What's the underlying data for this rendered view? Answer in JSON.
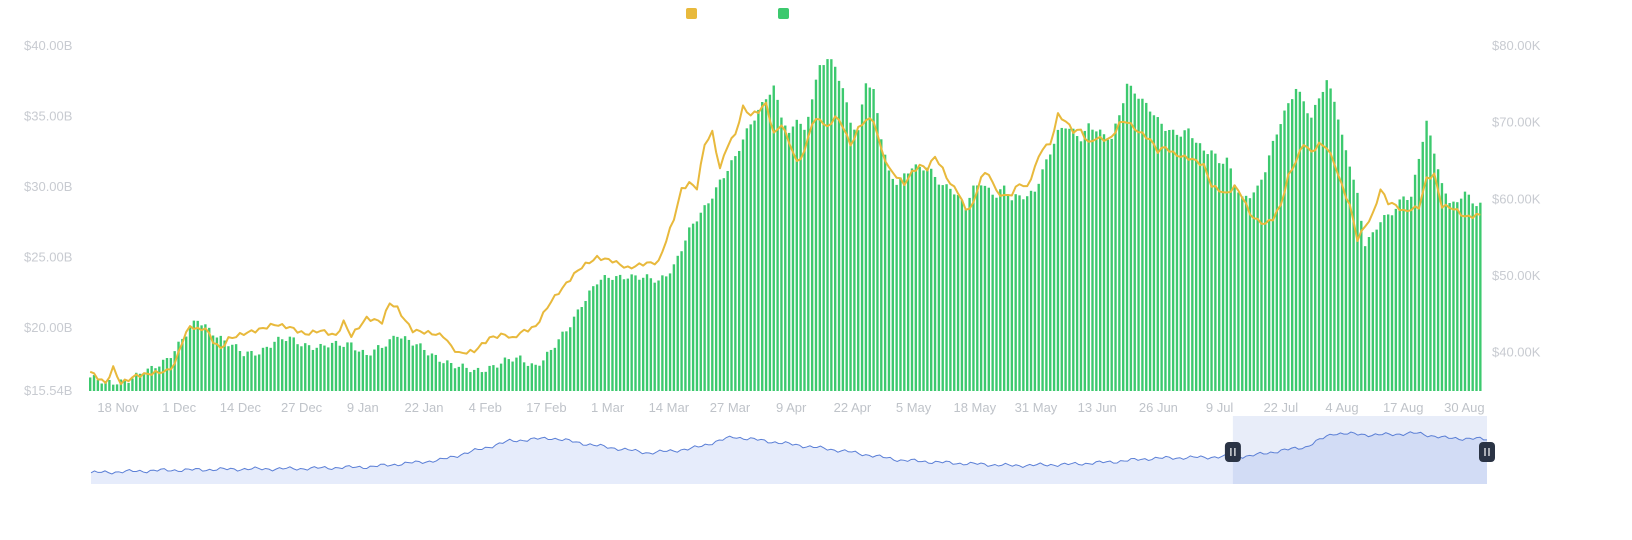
{
  "chart_data": {
    "type": "bar",
    "title": "",
    "legend": {
      "placement": "top-center",
      "entries": [
        {
          "name": "",
          "color": "#e8b93c",
          "kind": "line",
          "axis": "right"
        },
        {
          "name": "",
          "color": "#3cc96e",
          "kind": "bar",
          "axis": "left"
        }
      ]
    },
    "y_left": {
      "ylim": [
        15.54,
        40.0
      ],
      "ticks": [
        40.0,
        35.0,
        30.0,
        25.0,
        20.0,
        15.54
      ],
      "tick_labels": [
        "$40.00B",
        "$35.00B",
        "$30.00B",
        "$25.00B",
        "$20.00B",
        "$15.54B"
      ]
    },
    "y_right": {
      "ylim": [
        35000,
        80000
      ],
      "ticks": [
        80000,
        70000,
        60000,
        50000,
        40000
      ],
      "tick_labels": [
        "$80.00K",
        "$70.00K",
        "$60.00K",
        "$50.00K",
        "$40.00K"
      ]
    },
    "x_ticks": [
      "18 Nov",
      "1 Dec",
      "14 Dec",
      "27 Dec",
      "9 Jan",
      "22 Jan",
      "4 Feb",
      "17 Feb",
      "1 Mar",
      "14 Mar",
      "27 Mar",
      "9 Apr",
      "22 Apr",
      "5 May",
      "18 May",
      "31 May",
      "13 Jun",
      "26 Jun",
      "9 Jul",
      "22 Jul",
      "4 Aug",
      "17 Aug",
      "30 Aug"
    ],
    "grid": false,
    "bars_anchor": [
      [
        0,
        16.5
      ],
      [
        4,
        16.0
      ],
      [
        8,
        16.3
      ],
      [
        12,
        16.6
      ],
      [
        16,
        17.0
      ],
      [
        20,
        17.9
      ],
      [
        24,
        19.2
      ],
      [
        28,
        20.5
      ],
      [
        32,
        19.8
      ],
      [
        36,
        18.9
      ],
      [
        40,
        18.1
      ],
      [
        44,
        18.4
      ],
      [
        48,
        19.0
      ],
      [
        52,
        19.2
      ],
      [
        56,
        18.9
      ],
      [
        60,
        18.6
      ],
      [
        64,
        18.8
      ],
      [
        68,
        19.0
      ],
      [
        72,
        18.0
      ],
      [
        76,
        18.6
      ],
      [
        80,
        19.7
      ],
      [
        84,
        18.9
      ],
      [
        88,
        18.2
      ],
      [
        92,
        17.8
      ],
      [
        96,
        17.2
      ],
      [
        100,
        16.9
      ],
      [
        104,
        17.3
      ],
      [
        108,
        17.6
      ],
      [
        112,
        17.8
      ],
      [
        116,
        17.4
      ],
      [
        120,
        18.3
      ],
      [
        124,
        19.8
      ],
      [
        128,
        21.8
      ],
      [
        132,
        23.2
      ],
      [
        136,
        23.6
      ],
      [
        140,
        23.8
      ],
      [
        144,
        23.5
      ],
      [
        148,
        23.3
      ],
      [
        152,
        24.5
      ],
      [
        156,
        26.8
      ],
      [
        160,
        28.5
      ],
      [
        164,
        30.5
      ],
      [
        168,
        32.0
      ],
      [
        172,
        34.5
      ],
      [
        176,
        36.5
      ],
      [
        178,
        37.0
      ],
      [
        180,
        35.0
      ],
      [
        182,
        33.5
      ],
      [
        184,
        35.0
      ],
      [
        186,
        34.0
      ],
      [
        188,
        36.5
      ],
      [
        190,
        38.5
      ],
      [
        192,
        39.0
      ],
      [
        194,
        38.4
      ],
      [
        196,
        37.0
      ],
      [
        198,
        34.8
      ],
      [
        200,
        34.0
      ],
      [
        202,
        37.5
      ],
      [
        204,
        36.6
      ],
      [
        206,
        33.5
      ],
      [
        208,
        31.0
      ],
      [
        210,
        30.5
      ],
      [
        212,
        30.9
      ],
      [
        214,
        31.4
      ],
      [
        216,
        31.2
      ],
      [
        218,
        31.3
      ],
      [
        220,
        30.8
      ],
      [
        222,
        30.2
      ],
      [
        224,
        30.1
      ],
      [
        226,
        29.2
      ],
      [
        228,
        28.5
      ],
      [
        230,
        29.8
      ],
      [
        232,
        30.4
      ],
      [
        234,
        29.9
      ],
      [
        236,
        29.5
      ],
      [
        238,
        29.9
      ],
      [
        240,
        29.0
      ],
      [
        242,
        29.3
      ],
      [
        244,
        29.4
      ],
      [
        246,
        29.9
      ],
      [
        248,
        31.2
      ],
      [
        250,
        32.4
      ],
      [
        252,
        33.7
      ],
      [
        254,
        34.3
      ],
      [
        256,
        34.0
      ],
      [
        258,
        33.6
      ],
      [
        260,
        34.4
      ],
      [
        262,
        34.0
      ],
      [
        264,
        33.5
      ],
      [
        266,
        33.4
      ],
      [
        268,
        35.2
      ],
      [
        270,
        37.4
      ],
      [
        272,
        36.8
      ],
      [
        274,
        36.0
      ],
      [
        276,
        35.4
      ],
      [
        278,
        34.7
      ],
      [
        280,
        34.3
      ],
      [
        282,
        34.0
      ],
      [
        284,
        33.8
      ],
      [
        286,
        33.9
      ],
      [
        288,
        33.1
      ],
      [
        290,
        32.5
      ],
      [
        292,
        32.7
      ],
      [
        294,
        31.9
      ],
      [
        296,
        32.0
      ],
      [
        298,
        30.2
      ],
      [
        300,
        29.0
      ],
      [
        302,
        29.4
      ],
      [
        304,
        30.0
      ],
      [
        306,
        31.4
      ],
      [
        308,
        33.1
      ],
      [
        310,
        34.5
      ],
      [
        312,
        35.7
      ],
      [
        314,
        37.0
      ],
      [
        316,
        36.2
      ],
      [
        318,
        35.0
      ],
      [
        320,
        36.4
      ],
      [
        322,
        37.3
      ],
      [
        324,
        36.1
      ],
      [
        326,
        33.5
      ],
      [
        328,
        31.8
      ],
      [
        330,
        29.5
      ],
      [
        332,
        26.0
      ],
      [
        334,
        26.5
      ],
      [
        336,
        27.5
      ],
      [
        338,
        28.0
      ],
      [
        340,
        28.6
      ],
      [
        342,
        29.5
      ],
      [
        344,
        29.2
      ],
      [
        346,
        32.0
      ],
      [
        348,
        34.4
      ],
      [
        350,
        32.6
      ],
      [
        352,
        30.2
      ],
      [
        354,
        29.2
      ],
      [
        356,
        28.7
      ],
      [
        358,
        29.7
      ],
      [
        360,
        28.6
      ],
      [
        362,
        29.0
      ]
    ],
    "price_anchor": [
      [
        0,
        37500
      ],
      [
        4,
        36000
      ],
      [
        6,
        38000
      ],
      [
        8,
        36000
      ],
      [
        12,
        37000
      ],
      [
        16,
        37300
      ],
      [
        20,
        37600
      ],
      [
        22,
        38500
      ],
      [
        24,
        41500
      ],
      [
        26,
        43500
      ],
      [
        28,
        43000
      ],
      [
        30,
        43200
      ],
      [
        32,
        41500
      ],
      [
        34,
        40500
      ],
      [
        36,
        41800
      ],
      [
        40,
        42500
      ],
      [
        44,
        43000
      ],
      [
        48,
        43700
      ],
      [
        52,
        43300
      ],
      [
        56,
        42400
      ],
      [
        60,
        42900
      ],
      [
        64,
        42200
      ],
      [
        66,
        44000
      ],
      [
        68,
        42200
      ],
      [
        72,
        44500
      ],
      [
        76,
        44000
      ],
      [
        78,
        46500
      ],
      [
        80,
        45800
      ],
      [
        82,
        44200
      ],
      [
        84,
        42900
      ],
      [
        88,
        42600
      ],
      [
        92,
        42200
      ],
      [
        94,
        40800
      ],
      [
        96,
        39900
      ],
      [
        100,
        40200
      ],
      [
        104,
        41900
      ],
      [
        108,
        42400
      ],
      [
        110,
        41800
      ],
      [
        112,
        42600
      ],
      [
        116,
        43400
      ],
      [
        120,
        46700
      ],
      [
        124,
        49000
      ],
      [
        126,
        50200
      ],
      [
        128,
        51200
      ],
      [
        132,
        52400
      ],
      [
        136,
        52000
      ],
      [
        140,
        51000
      ],
      [
        144,
        51600
      ],
      [
        148,
        51800
      ],
      [
        152,
        57500
      ],
      [
        154,
        61300
      ],
      [
        156,
        62100
      ],
      [
        158,
        61500
      ],
      [
        160,
        67200
      ],
      [
        162,
        68700
      ],
      [
        164,
        64000
      ],
      [
        166,
        67100
      ],
      [
        168,
        68500
      ],
      [
        170,
        72000
      ],
      [
        172,
        71000
      ],
      [
        174,
        71500
      ],
      [
        176,
        72500
      ],
      [
        178,
        68500
      ],
      [
        180,
        69800
      ],
      [
        182,
        67500
      ],
      [
        184,
        64800
      ],
      [
        186,
        66200
      ],
      [
        188,
        70000
      ],
      [
        190,
        70500
      ],
      [
        192,
        69300
      ],
      [
        194,
        70800
      ],
      [
        196,
        69600
      ],
      [
        198,
        67000
      ],
      [
        200,
        69200
      ],
      [
        202,
        70400
      ],
      [
        204,
        70300
      ],
      [
        206,
        66500
      ],
      [
        208,
        64000
      ],
      [
        210,
        63000
      ],
      [
        212,
        62000
      ],
      [
        214,
        63500
      ],
      [
        216,
        64400
      ],
      [
        218,
        64000
      ],
      [
        220,
        65600
      ],
      [
        222,
        63900
      ],
      [
        224,
        62000
      ],
      [
        226,
        61000
      ],
      [
        228,
        58600
      ],
      [
        230,
        59400
      ],
      [
        232,
        63000
      ],
      [
        234,
        63400
      ],
      [
        236,
        61000
      ],
      [
        238,
        60400
      ],
      [
        240,
        60700
      ],
      [
        242,
        62100
      ],
      [
        244,
        61500
      ],
      [
        246,
        64200
      ],
      [
        248,
        66700
      ],
      [
        250,
        67200
      ],
      [
        252,
        71000
      ],
      [
        254,
        70200
      ],
      [
        256,
        68900
      ],
      [
        258,
        69000
      ],
      [
        260,
        67300
      ],
      [
        262,
        68000
      ],
      [
        264,
        67800
      ],
      [
        266,
        68000
      ],
      [
        268,
        69900
      ],
      [
        270,
        70200
      ],
      [
        272,
        69200
      ],
      [
        274,
        68500
      ],
      [
        276,
        67800
      ],
      [
        278,
        66300
      ],
      [
        280,
        66800
      ],
      [
        282,
        66000
      ],
      [
        284,
        65600
      ],
      [
        286,
        65400
      ],
      [
        288,
        65000
      ],
      [
        290,
        64400
      ],
      [
        292,
        61800
      ],
      [
        294,
        61200
      ],
      [
        296,
        60700
      ],
      [
        298,
        61700
      ],
      [
        300,
        60400
      ],
      [
        302,
        58100
      ],
      [
        304,
        57200
      ],
      [
        306,
        56800
      ],
      [
        308,
        57500
      ],
      [
        310,
        59200
      ],
      [
        312,
        63000
      ],
      [
        314,
        65000
      ],
      [
        316,
        67300
      ],
      [
        318,
        66100
      ],
      [
        320,
        67200
      ],
      [
        322,
        66800
      ],
      [
        324,
        64700
      ],
      [
        326,
        61700
      ],
      [
        328,
        59200
      ],
      [
        330,
        54800
      ],
      [
        332,
        56500
      ],
      [
        334,
        58000
      ],
      [
        336,
        61300
      ],
      [
        338,
        59600
      ],
      [
        340,
        59200
      ],
      [
        342,
        58400
      ],
      [
        344,
        58700
      ],
      [
        346,
        59000
      ],
      [
        348,
        62700
      ],
      [
        350,
        63200
      ],
      [
        352,
        59100
      ],
      [
        354,
        59000
      ],
      [
        356,
        58500
      ],
      [
        358,
        57700
      ],
      [
        360,
        57800
      ],
      [
        362,
        58000
      ]
    ],
    "bar_count": 363,
    "navigator": {
      "overview_line_color": "#5b7fd6",
      "selection": [
        0.818,
        1.0
      ],
      "overview_anchor": [
        [
          0,
          0.12
        ],
        [
          0.05,
          0.16
        ],
        [
          0.1,
          0.18
        ],
        [
          0.15,
          0.19
        ],
        [
          0.2,
          0.22
        ],
        [
          0.25,
          0.33
        ],
        [
          0.28,
          0.52
        ],
        [
          0.3,
          0.65
        ],
        [
          0.33,
          0.7
        ],
        [
          0.36,
          0.58
        ],
        [
          0.4,
          0.45
        ],
        [
          0.43,
          0.52
        ],
        [
          0.46,
          0.72
        ],
        [
          0.5,
          0.6
        ],
        [
          0.54,
          0.48
        ],
        [
          0.58,
          0.33
        ],
        [
          0.62,
          0.28
        ],
        [
          0.66,
          0.24
        ],
        [
          0.7,
          0.26
        ],
        [
          0.73,
          0.3
        ],
        [
          0.76,
          0.36
        ],
        [
          0.8,
          0.38
        ],
        [
          0.83,
          0.4
        ],
        [
          0.85,
          0.48
        ],
        [
          0.87,
          0.55
        ],
        [
          0.89,
          0.78
        ],
        [
          0.92,
          0.75
        ],
        [
          0.95,
          0.78
        ],
        [
          0.97,
          0.7
        ],
        [
          1.0,
          0.68
        ]
      ]
    }
  }
}
